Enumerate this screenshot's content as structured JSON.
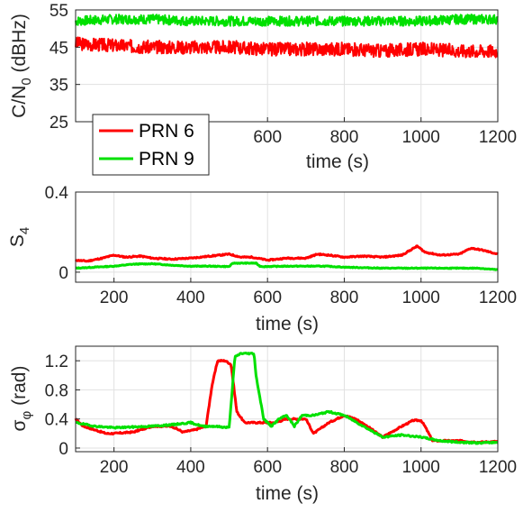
{
  "chart_data": [
    {
      "type": "line",
      "xlabel": "time (s)",
      "ylabel": "C/N",
      "ylabel_sub": "0",
      "ylabel_unit": " (dBHz)",
      "xlim": [
        100,
        1200
      ],
      "ylim": [
        25,
        55
      ],
      "xticks": [
        600,
        800,
        1000,
        1200
      ],
      "xtick_labels": [
        "600",
        "800",
        "1000",
        "1200"
      ],
      "yticks": [
        25,
        35,
        45,
        55
      ],
      "ytick_labels": [
        "25",
        "35",
        "45",
        "55"
      ],
      "grid": true,
      "legend": {
        "placement": "bottom-left",
        "entries": [
          "PRN 6",
          "PRN 9"
        ]
      },
      "series": [
        {
          "name": "PRN 6",
          "color": "#ff0000",
          "noise": 1.8,
          "seed": 3,
          "x": [
            100,
            200,
            300,
            400,
            500,
            600,
            700,
            800,
            900,
            1000,
            1100,
            1200
          ],
          "y": [
            46,
            45.5,
            45,
            45,
            45,
            44.5,
            44.5,
            44.5,
            44,
            44.5,
            44,
            44
          ]
        },
        {
          "name": "PRN 9",
          "color": "#00e000",
          "noise": 1.3,
          "seed": 7,
          "x": [
            100,
            200,
            300,
            400,
            500,
            600,
            700,
            800,
            900,
            1000,
            1100,
            1200
          ],
          "y": [
            52,
            52.5,
            52.5,
            52,
            52,
            52,
            52,
            52,
            52,
            52,
            52.5,
            52.5
          ]
        }
      ]
    },
    {
      "type": "line",
      "xlabel": "time (s)",
      "ylabel": "S",
      "ylabel_sub": "4",
      "xlim": [
        100,
        1200
      ],
      "ylim": [
        -0.05,
        0.4
      ],
      "xticks": [
        200,
        400,
        600,
        800,
        1000,
        1200
      ],
      "xtick_labels": [
        "200",
        "400",
        "600",
        "800",
        "1000",
        "1200"
      ],
      "yticks": [
        0,
        0.4
      ],
      "ytick_labels": [
        "0",
        "0.4"
      ],
      "grid": true,
      "series": [
        {
          "name": "PRN 6",
          "color": "#ff0000",
          "noise": 0.003,
          "seed": 11,
          "x": [
            100,
            130,
            170,
            200,
            230,
            270,
            300,
            350,
            400,
            450,
            500,
            530,
            560,
            600,
            650,
            700,
            730,
            760,
            800,
            850,
            900,
            950,
            990,
            1010,
            1050,
            1100,
            1130,
            1160,
            1200
          ],
          "y": [
            0.06,
            0.055,
            0.07,
            0.085,
            0.075,
            0.08,
            0.07,
            0.065,
            0.07,
            0.08,
            0.09,
            0.075,
            0.075,
            0.06,
            0.07,
            0.07,
            0.09,
            0.085,
            0.075,
            0.08,
            0.075,
            0.085,
            0.13,
            0.1,
            0.085,
            0.09,
            0.12,
            0.11,
            0.09
          ]
        },
        {
          "name": "PRN 9",
          "color": "#00e000",
          "noise": 0.002,
          "seed": 13,
          "x": [
            100,
            150,
            200,
            250,
            300,
            350,
            400,
            450,
            500,
            510,
            520,
            570,
            580,
            590,
            650,
            700,
            750,
            800,
            900,
            1000,
            1100,
            1150,
            1200
          ],
          "y": [
            0.02,
            0.025,
            0.03,
            0.04,
            0.042,
            0.035,
            0.03,
            0.03,
            0.028,
            0.045,
            0.045,
            0.045,
            0.03,
            0.028,
            0.03,
            0.03,
            0.03,
            0.025,
            0.02,
            0.02,
            0.02,
            0.02,
            0.012
          ]
        }
      ]
    },
    {
      "type": "line",
      "xlabel": "time (s)",
      "ylabel": "σ",
      "ylabel_sub": "φ",
      "ylabel_unit": " (rad)",
      "xlim": [
        100,
        1200
      ],
      "ylim": [
        -0.05,
        1.4
      ],
      "xticks": [
        200,
        400,
        600,
        800,
        1000,
        1200
      ],
      "xtick_labels": [
        "200",
        "400",
        "600",
        "800",
        "1000",
        "1200"
      ],
      "yticks": [
        0,
        0.4,
        0.8,
        1.2
      ],
      "ytick_labels": [
        "0",
        "0.4",
        "0.8",
        "1.2"
      ],
      "grid": true,
      "series": [
        {
          "name": "PRN 6",
          "color": "#ff0000",
          "noise": 0.01,
          "seed": 17,
          "x": [
            100,
            120,
            150,
            180,
            200,
            250,
            300,
            350,
            380,
            410,
            440,
            455,
            470,
            490,
            505,
            520,
            540,
            570,
            600,
            620,
            650,
            700,
            720,
            760,
            800,
            830,
            860,
            900,
            950,
            980,
            1000,
            1010,
            1030,
            1060,
            1100,
            1150,
            1200
          ],
          "y": [
            0.4,
            0.3,
            0.25,
            0.2,
            0.2,
            0.22,
            0.3,
            0.3,
            0.22,
            0.25,
            0.3,
            0.85,
            1.2,
            1.2,
            1.15,
            0.5,
            0.35,
            0.35,
            0.35,
            0.35,
            0.4,
            0.4,
            0.2,
            0.35,
            0.45,
            0.4,
            0.3,
            0.15,
            0.3,
            0.38,
            0.38,
            0.3,
            0.1,
            0.1,
            0.1,
            0.08,
            0.09
          ]
        },
        {
          "name": "PRN 9",
          "color": "#00e000",
          "noise": 0.01,
          "seed": 19,
          "x": [
            100,
            150,
            200,
            300,
            350,
            400,
            430,
            460,
            500,
            515,
            530,
            550,
            565,
            570,
            590,
            610,
            630,
            650,
            670,
            690,
            720,
            760,
            800,
            850,
            900,
            950,
            1000,
            1050,
            1100,
            1150,
            1200
          ],
          "y": [
            0.35,
            0.3,
            0.28,
            0.3,
            0.32,
            0.35,
            0.3,
            0.3,
            0.28,
            1.25,
            1.3,
            1.3,
            1.3,
            1.0,
            0.4,
            0.3,
            0.4,
            0.45,
            0.3,
            0.45,
            0.45,
            0.5,
            0.45,
            0.3,
            0.15,
            0.18,
            0.15,
            0.1,
            0.08,
            0.07,
            0.08
          ]
        }
      ]
    }
  ]
}
